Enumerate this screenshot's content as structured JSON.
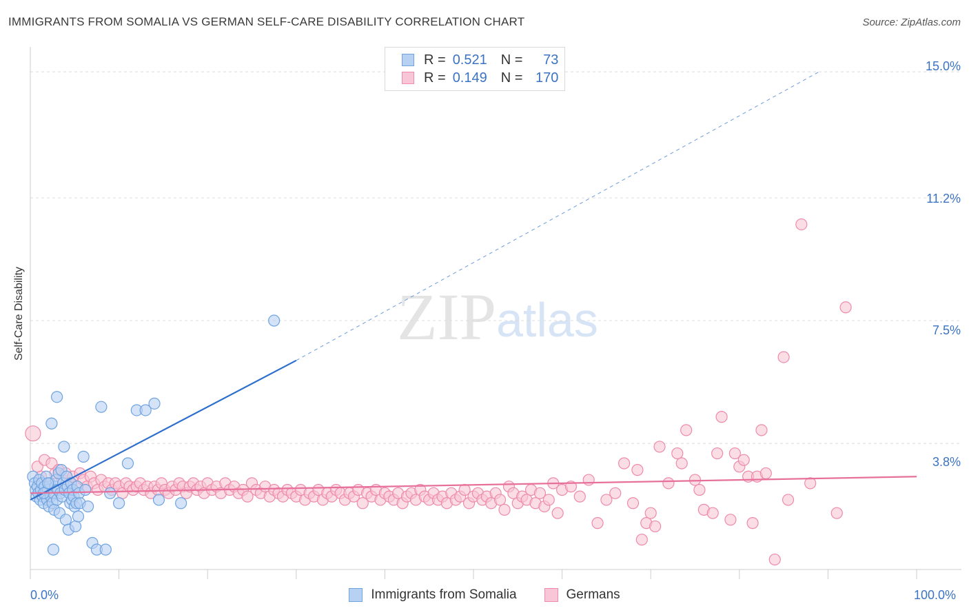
{
  "title": "IMMIGRANTS FROM SOMALIA VS GERMAN SELF-CARE DISABILITY CORRELATION CHART",
  "source": "Source: ZipAtlas.com",
  "watermark": {
    "zip": "ZIP",
    "atlas": "atlas"
  },
  "legend_stats": [
    {
      "r_label": "R =",
      "r_value": "0.521",
      "n_label": "N =",
      "n_value": "73"
    },
    {
      "r_label": "R =",
      "r_value": "0.149",
      "n_label": "N =",
      "n_value": "170"
    }
  ],
  "colors": {
    "blue": "#6fa3e0",
    "blue_fill": "#b7d1f2",
    "blue_line": "#2e6fcd",
    "pink": "#ee8aaa",
    "pink_fill": "#f8c6d6",
    "pink_line": "#e7709a",
    "tick": "#3b73c4"
  },
  "chart_data": {
    "type": "scatter",
    "title": "IMMIGRANTS FROM SOMALIA VS GERMAN SELF-CARE DISABILITY CORRELATION CHART",
    "xlabel": "",
    "ylabel": "Self-Care Disability",
    "xlim": [
      0,
      100
    ],
    "ylim": [
      0,
      15.5
    ],
    "x_tick_labels": [
      "0.0%",
      "100.0%"
    ],
    "y_ticks": [
      3.8,
      7.5,
      11.2,
      15.0
    ],
    "y_tick_labels": [
      "3.8%",
      "7.5%",
      "11.2%",
      "15.0%"
    ],
    "grid": true,
    "legend_position": "bottom",
    "series": [
      {
        "name": "Immigrants from Somalia",
        "r": 0.521,
        "n": 73,
        "trend": {
          "x0": 0,
          "y0": 2.1,
          "x1": 30,
          "y1": 6.3,
          "dash_x1": 89,
          "dash_y1": 15.0
        },
        "points": [
          [
            0.3,
            2.8
          ],
          [
            0.5,
            2.6
          ],
          [
            0.6,
            2.4
          ],
          [
            0.7,
            2.2
          ],
          [
            0.8,
            2.5
          ],
          [
            0.9,
            2.3
          ],
          [
            1.0,
            2.7
          ],
          [
            1.1,
            2.1
          ],
          [
            1.2,
            2.4
          ],
          [
            1.3,
            2.6
          ],
          [
            1.4,
            2.2
          ],
          [
            1.5,
            2.0
          ],
          [
            1.6,
            2.5
          ],
          [
            1.7,
            2.3
          ],
          [
            1.8,
            2.8
          ],
          [
            1.9,
            2.1
          ],
          [
            2.0,
            2.4
          ],
          [
            2.1,
            1.9
          ],
          [
            2.2,
            2.6
          ],
          [
            2.3,
            2.2
          ],
          [
            2.4,
            4.4
          ],
          [
            2.5,
            2.0
          ],
          [
            2.6,
            2.3
          ],
          [
            2.7,
            1.8
          ],
          [
            2.8,
            2.5
          ],
          [
            2.9,
            2.7
          ],
          [
            3.0,
            2.1
          ],
          [
            3.1,
            2.4
          ],
          [
            3.2,
            2.9
          ],
          [
            3.3,
            1.7
          ],
          [
            3.4,
            2.3
          ],
          [
            3.5,
            3.0
          ],
          [
            3.6,
            2.2
          ],
          [
            3.7,
            2.6
          ],
          [
            3.8,
            3.7
          ],
          [
            3.9,
            2.4
          ],
          [
            4.0,
            1.5
          ],
          [
            4.1,
            2.8
          ],
          [
            4.2,
            2.5
          ],
          [
            4.3,
            1.2
          ],
          [
            4.4,
            2.3
          ],
          [
            4.5,
            2.0
          ],
          [
            4.6,
            2.6
          ],
          [
            4.7,
            2.1
          ],
          [
            4.8,
            2.4
          ],
          [
            4.9,
            2.2
          ],
          [
            5.0,
            1.9
          ],
          [
            5.1,
            1.3
          ],
          [
            5.2,
            2.0
          ],
          [
            5.3,
            2.5
          ],
          [
            5.4,
            1.6
          ],
          [
            5.5,
            2.3
          ],
          [
            5.6,
            2.0
          ],
          [
            6.0,
            3.4
          ],
          [
            6.2,
            2.4
          ],
          [
            6.5,
            1.9
          ],
          [
            7.0,
            0.8
          ],
          [
            7.5,
            0.6
          ],
          [
            8.0,
            4.9
          ],
          [
            8.5,
            0.6
          ],
          [
            3.0,
            5.2
          ],
          [
            2.6,
            0.6
          ],
          [
            9.0,
            2.3
          ],
          [
            10.0,
            2.0
          ],
          [
            11.0,
            3.2
          ],
          [
            12.0,
            4.8
          ],
          [
            13.0,
            4.8
          ],
          [
            14.0,
            5.0
          ],
          [
            14.5,
            2.1
          ],
          [
            17.0,
            2.0
          ],
          [
            27.5,
            7.5
          ],
          [
            1.5,
            2.3
          ],
          [
            2.0,
            2.6
          ]
        ]
      },
      {
        "name": "Germans",
        "r": 0.149,
        "n": 170,
        "trend": {
          "x0": 0,
          "y0": 2.3,
          "x1": 100,
          "y1": 2.8
        },
        "points": [
          [
            0.3,
            4.1
          ],
          [
            0.8,
            3.1
          ],
          [
            1.2,
            2.8
          ],
          [
            1.6,
            3.3
          ],
          [
            2.0,
            2.6
          ],
          [
            2.4,
            3.2
          ],
          [
            2.8,
            2.9
          ],
          [
            3.2,
            3.0
          ],
          [
            3.6,
            2.7
          ],
          [
            4.0,
            2.9
          ],
          [
            4.4,
            2.6
          ],
          [
            4.8,
            2.8
          ],
          [
            5.2,
            2.5
          ],
          [
            5.6,
            2.9
          ],
          [
            6.0,
            2.7
          ],
          [
            6.4,
            2.5
          ],
          [
            6.8,
            2.8
          ],
          [
            7.2,
            2.6
          ],
          [
            7.6,
            2.4
          ],
          [
            8.0,
            2.7
          ],
          [
            8.4,
            2.5
          ],
          [
            8.8,
            2.6
          ],
          [
            9.2,
            2.4
          ],
          [
            9.6,
            2.6
          ],
          [
            10.0,
            2.5
          ],
          [
            10.4,
            2.3
          ],
          [
            10.8,
            2.6
          ],
          [
            11.2,
            2.5
          ],
          [
            11.6,
            2.4
          ],
          [
            12.0,
            2.5
          ],
          [
            12.4,
            2.6
          ],
          [
            12.8,
            2.4
          ],
          [
            13.2,
            2.5
          ],
          [
            13.6,
            2.3
          ],
          [
            14.0,
            2.5
          ],
          [
            14.4,
            2.4
          ],
          [
            14.8,
            2.6
          ],
          [
            15.2,
            2.4
          ],
          [
            15.6,
            2.3
          ],
          [
            16.0,
            2.5
          ],
          [
            16.4,
            2.4
          ],
          [
            16.8,
            2.6
          ],
          [
            17.2,
            2.5
          ],
          [
            17.6,
            2.3
          ],
          [
            18.0,
            2.5
          ],
          [
            18.4,
            2.6
          ],
          [
            18.8,
            2.4
          ],
          [
            19.2,
            2.5
          ],
          [
            19.6,
            2.3
          ],
          [
            20.0,
            2.6
          ],
          [
            20.5,
            2.4
          ],
          [
            21.0,
            2.5
          ],
          [
            21.5,
            2.3
          ],
          [
            22.0,
            2.6
          ],
          [
            22.5,
            2.4
          ],
          [
            23.0,
            2.5
          ],
          [
            23.5,
            2.3
          ],
          [
            24.0,
            2.4
          ],
          [
            24.5,
            2.2
          ],
          [
            25.0,
            2.6
          ],
          [
            25.5,
            2.4
          ],
          [
            26.0,
            2.3
          ],
          [
            26.5,
            2.5
          ],
          [
            27.0,
            2.2
          ],
          [
            27.5,
            2.4
          ],
          [
            28.0,
            2.3
          ],
          [
            28.5,
            2.2
          ],
          [
            29.0,
            2.4
          ],
          [
            29.5,
            2.3
          ],
          [
            30.0,
            2.2
          ],
          [
            30.5,
            2.4
          ],
          [
            31.0,
            2.1
          ],
          [
            31.5,
            2.3
          ],
          [
            32.0,
            2.2
          ],
          [
            32.5,
            2.4
          ],
          [
            33.0,
            2.1
          ],
          [
            33.5,
            2.3
          ],
          [
            34.0,
            2.2
          ],
          [
            34.5,
            2.4
          ],
          [
            35.0,
            2.3
          ],
          [
            35.5,
            2.1
          ],
          [
            36.0,
            2.3
          ],
          [
            36.5,
            2.2
          ],
          [
            37.0,
            2.4
          ],
          [
            37.5,
            2.0
          ],
          [
            38.0,
            2.3
          ],
          [
            38.5,
            2.2
          ],
          [
            39.0,
            2.4
          ],
          [
            39.5,
            2.1
          ],
          [
            40.0,
            2.3
          ],
          [
            40.5,
            2.2
          ],
          [
            41.0,
            2.1
          ],
          [
            41.5,
            2.3
          ],
          [
            42.0,
            2.0
          ],
          [
            42.5,
            2.2
          ],
          [
            43.0,
            2.3
          ],
          [
            43.5,
            2.1
          ],
          [
            44.0,
            2.4
          ],
          [
            44.5,
            2.2
          ],
          [
            45.0,
            2.1
          ],
          [
            45.5,
            2.3
          ],
          [
            46.0,
            2.1
          ],
          [
            46.5,
            2.2
          ],
          [
            47.0,
            2.0
          ],
          [
            47.5,
            2.3
          ],
          [
            48.0,
            2.1
          ],
          [
            48.5,
            2.2
          ],
          [
            49.0,
            2.4
          ],
          [
            49.5,
            2.0
          ],
          [
            50.0,
            2.2
          ],
          [
            50.5,
            2.3
          ],
          [
            51.0,
            2.1
          ],
          [
            51.5,
            2.2
          ],
          [
            52.0,
            2.0
          ],
          [
            52.5,
            2.3
          ],
          [
            53.0,
            2.1
          ],
          [
            53.5,
            1.8
          ],
          [
            54.0,
            2.5
          ],
          [
            54.5,
            2.3
          ],
          [
            55.0,
            2.0
          ],
          [
            55.5,
            2.2
          ],
          [
            56.0,
            2.1
          ],
          [
            56.5,
            2.4
          ],
          [
            57.0,
            2.0
          ],
          [
            57.5,
            2.3
          ],
          [
            58.0,
            1.9
          ],
          [
            58.5,
            2.1
          ],
          [
            59.0,
            2.6
          ],
          [
            59.5,
            1.7
          ],
          [
            60.0,
            2.4
          ],
          [
            61.0,
            2.5
          ],
          [
            62.0,
            2.2
          ],
          [
            63.0,
            2.7
          ],
          [
            64.0,
            1.4
          ],
          [
            65.0,
            2.1
          ],
          [
            66.0,
            2.3
          ],
          [
            67.0,
            3.2
          ],
          [
            68.0,
            2.0
          ],
          [
            68.5,
            3.0
          ],
          [
            69.0,
            0.9
          ],
          [
            69.5,
            1.4
          ],
          [
            70.0,
            1.7
          ],
          [
            70.5,
            1.3
          ],
          [
            71.0,
            3.7
          ],
          [
            72.0,
            2.6
          ],
          [
            73.0,
            3.5
          ],
          [
            73.5,
            3.2
          ],
          [
            74.0,
            4.2
          ],
          [
            75.0,
            2.7
          ],
          [
            75.5,
            2.4
          ],
          [
            76.0,
            1.8
          ],
          [
            77.0,
            1.7
          ],
          [
            77.5,
            3.5
          ],
          [
            78.0,
            4.6
          ],
          [
            79.0,
            1.5
          ],
          [
            79.5,
            3.5
          ],
          [
            80.0,
            3.1
          ],
          [
            80.5,
            3.3
          ],
          [
            81.0,
            2.8
          ],
          [
            81.5,
            1.4
          ],
          [
            82.0,
            2.8
          ],
          [
            82.5,
            4.2
          ],
          [
            83.0,
            2.9
          ],
          [
            84.0,
            0.3
          ],
          [
            85.0,
            6.4
          ],
          [
            85.5,
            2.1
          ],
          [
            87.0,
            10.4
          ],
          [
            88.0,
            2.6
          ],
          [
            91.0,
            1.7
          ],
          [
            92.0,
            7.9
          ]
        ]
      }
    ]
  },
  "bottom_legend": [
    "Immigrants from Somalia",
    "Germans"
  ]
}
